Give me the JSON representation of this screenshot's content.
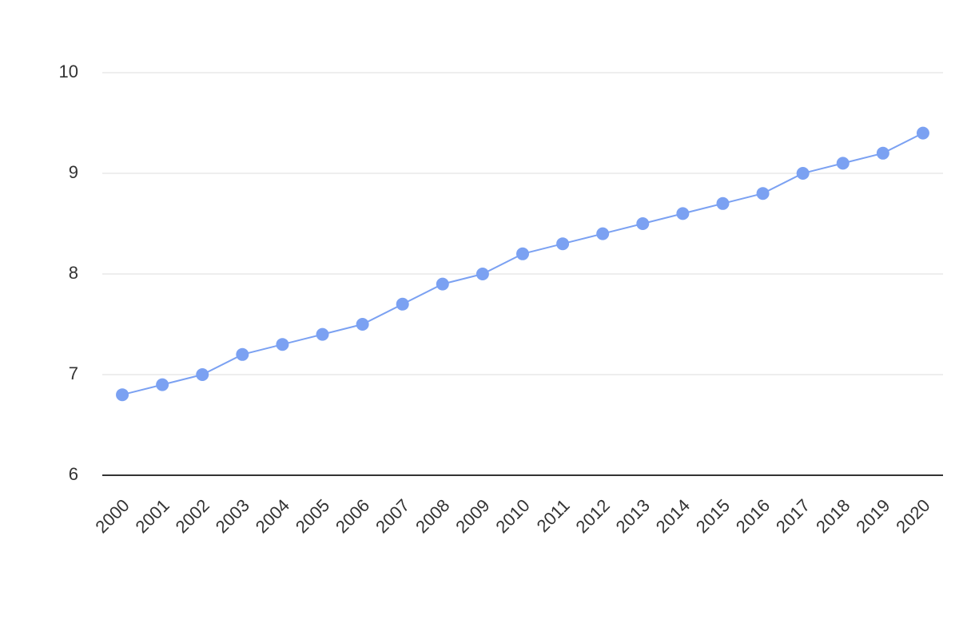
{
  "chart_data": {
    "type": "line",
    "categories": [
      "2000",
      "2001",
      "2002",
      "2003",
      "2004",
      "2005",
      "2006",
      "2007",
      "2008",
      "2009",
      "2010",
      "2011",
      "2012",
      "2013",
      "2014",
      "2015",
      "2016",
      "2017",
      "2018",
      "2019",
      "2020"
    ],
    "values": [
      6.8,
      6.9,
      7.0,
      7.2,
      7.3,
      7.4,
      7.5,
      7.7,
      7.9,
      8.0,
      8.2,
      8.3,
      8.4,
      8.5,
      8.6,
      8.7,
      8.8,
      9.0,
      9.1,
      9.2,
      9.4
    ],
    "color": "#7ba1f2",
    "ylim": [
      6,
      10
    ],
    "yticks": [
      6,
      7,
      8,
      9,
      10
    ],
    "grid": true
  }
}
